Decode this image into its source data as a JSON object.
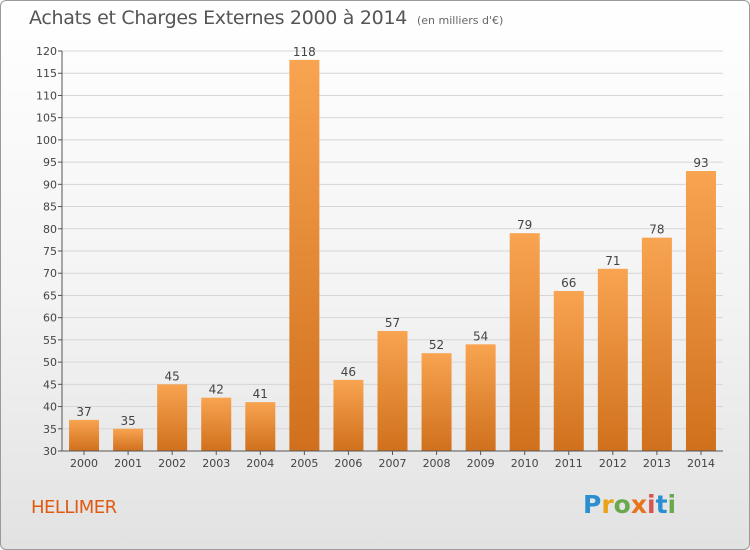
{
  "header": {
    "title": "Achats et Charges Externes 2000 à 2014",
    "unit": "(en milliers d'€)"
  },
  "footer": {
    "commune": "HELLIMER",
    "logo_text": "Proxiti",
    "logo_letters": [
      {
        "ch": "P",
        "color": "#2a8fd1"
      },
      {
        "ch": "r",
        "color": "#e8a317"
      },
      {
        "ch": "o",
        "color": "#6aa84f"
      },
      {
        "ch": "x",
        "color": "#e8731d"
      },
      {
        "ch": "i",
        "color": "#d9534f"
      },
      {
        "ch": "t",
        "color": "#2a8fd1"
      },
      {
        "ch": "i",
        "color": "#6aa84f"
      }
    ]
  },
  "colors": {
    "bar_top": "#f8a451",
    "bar_bottom": "#d0701c",
    "grid": "#d6d6d6",
    "axis_text": "#444444"
  },
  "chart_data": {
    "type": "bar",
    "title": "Achats et Charges Externes 2000 à 2014",
    "subtitle": "(en milliers d'€)",
    "categories": [
      "2000",
      "2001",
      "2002",
      "2003",
      "2004",
      "2005",
      "2006",
      "2007",
      "2008",
      "2009",
      "2010",
      "2011",
      "2012",
      "2013",
      "2014"
    ],
    "values": [
      37,
      35,
      45,
      42,
      41,
      118,
      46,
      57,
      52,
      54,
      79,
      66,
      71,
      78,
      93
    ],
    "ylim": [
      30,
      120
    ],
    "yticks": [
      30,
      35,
      40,
      45,
      50,
      55,
      60,
      65,
      70,
      75,
      80,
      85,
      90,
      95,
      100,
      105,
      110,
      115,
      120
    ],
    "grid": true,
    "data_labels": true
  }
}
